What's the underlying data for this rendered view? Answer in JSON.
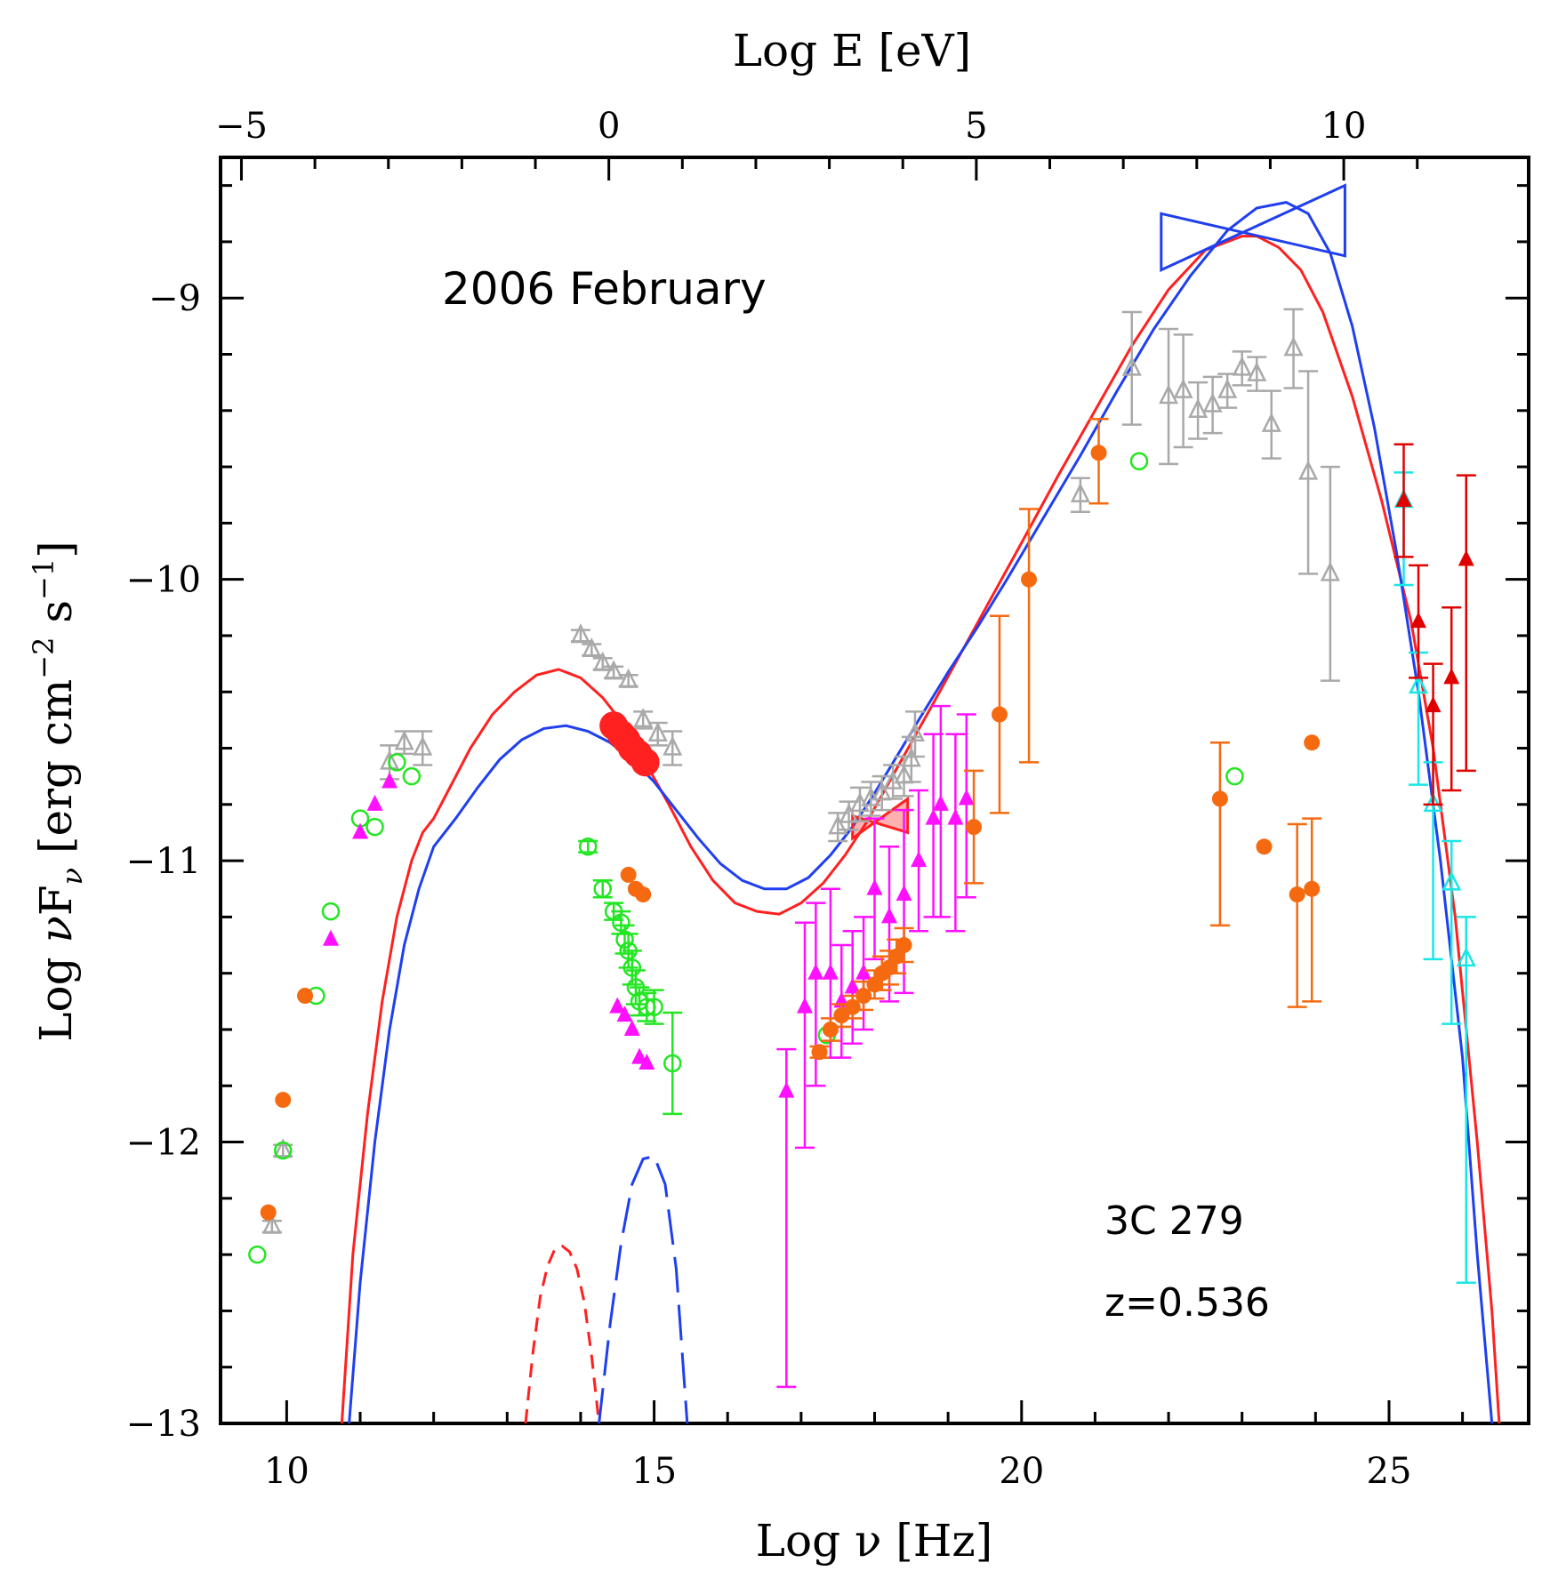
{
  "chart_data": {
    "type": "scatter",
    "title": "",
    "xlabel": "Log ν [Hz]",
    "ylabel": "Log νF_ν [erg cm^-2 s^-1]",
    "ylabel_parts": {
      "a": "Log ",
      "nu": "ν",
      "F": "F",
      "sub": "ν",
      "b": " [erg cm",
      "e1": "−2",
      "c": " s",
      "e2": "−1",
      "d": "]"
    },
    "x2label": "Log E [eV]",
    "xlim": [
      9.1,
      26.9
    ],
    "ylim": [
      -13,
      -8.5
    ],
    "x_ticks": [
      "10",
      "15",
      "20",
      "25"
    ],
    "y_ticks": [
      "−9",
      "−10",
      "−11",
      "−12",
      "−13"
    ],
    "x2_ticks": [
      "−5",
      "0",
      "5",
      "10"
    ],
    "annotations": {
      "epoch": "2006 February",
      "source": "3C 279",
      "redshift": "z=0.536"
    },
    "colors": {
      "red": "#ff2020",
      "blue": "#1f3ff0",
      "orange": "#f56a10",
      "magenta": "#ff10ff",
      "green": "#22e622",
      "gray": "#a9a9a9",
      "cyan": "#19e6e6",
      "darkred": "#e00000"
    },
    "models": [
      {
        "name": "red",
        "color": "#ff2020",
        "x": [
          10.75,
          10.9,
          11.1,
          11.3,
          11.5,
          11.7,
          11.85,
          12.0,
          12.2,
          12.5,
          12.8,
          13.1,
          13.4,
          13.7,
          14.0,
          14.3,
          14.6,
          14.9,
          15.2,
          15.5,
          15.8,
          16.1,
          16.4,
          16.7,
          17.0,
          17.3,
          17.6,
          17.9,
          18.2,
          18.5,
          18.8,
          19.2,
          19.6,
          20.0,
          20.5,
          21.0,
          21.5,
          22.0,
          22.5,
          23.0,
          23.2,
          23.5,
          23.8,
          24.1,
          24.5,
          24.9,
          25.3,
          25.6,
          25.9,
          26.2,
          26.4,
          26.5
        ],
        "y": [
          -13.0,
          -12.4,
          -11.9,
          -11.5,
          -11.2,
          -11.0,
          -10.9,
          -10.85,
          -10.75,
          -10.6,
          -10.48,
          -10.4,
          -10.34,
          -10.32,
          -10.35,
          -10.42,
          -10.52,
          -10.66,
          -10.8,
          -10.95,
          -11.07,
          -11.15,
          -11.18,
          -11.19,
          -11.15,
          -11.08,
          -10.98,
          -10.86,
          -10.72,
          -10.58,
          -10.44,
          -10.25,
          -10.06,
          -9.87,
          -9.63,
          -9.4,
          -9.17,
          -8.97,
          -8.83,
          -8.78,
          -8.78,
          -8.82,
          -8.9,
          -9.05,
          -9.35,
          -9.72,
          -10.15,
          -10.6,
          -11.2,
          -12.0,
          -12.6,
          -13.0
        ]
      },
      {
        "name": "blue",
        "color": "#1f3ff0",
        "x": [
          10.85,
          11.0,
          11.2,
          11.4,
          11.6,
          11.8,
          12.0,
          12.3,
          12.6,
          12.9,
          13.2,
          13.5,
          13.8,
          14.1,
          14.4,
          14.7,
          15.0,
          15.3,
          15.6,
          15.9,
          16.2,
          16.5,
          16.8,
          17.1,
          17.4,
          17.7,
          18.0,
          18.3,
          18.6,
          19.0,
          19.4,
          19.8,
          20.3,
          20.8,
          21.3,
          21.8,
          22.3,
          22.8,
          23.2,
          23.6,
          23.9,
          24.2,
          24.5,
          24.8,
          25.1,
          25.4,
          25.7,
          26.0,
          26.2,
          26.4
        ],
        "y": [
          -13.0,
          -12.5,
          -12.0,
          -11.6,
          -11.3,
          -11.1,
          -10.95,
          -10.85,
          -10.74,
          -10.64,
          -10.57,
          -10.53,
          -10.52,
          -10.54,
          -10.58,
          -10.64,
          -10.72,
          -10.82,
          -10.92,
          -11.01,
          -11.07,
          -11.1,
          -11.1,
          -11.06,
          -10.98,
          -10.88,
          -10.76,
          -10.63,
          -10.5,
          -10.33,
          -10.17,
          -10.0,
          -9.78,
          -9.56,
          -9.33,
          -9.11,
          -8.92,
          -8.76,
          -8.68,
          -8.66,
          -8.7,
          -8.84,
          -9.1,
          -9.46,
          -9.9,
          -10.4,
          -11.0,
          -11.7,
          -12.4,
          -13.0
        ]
      },
      {
        "name": "red-dashed",
        "color": "#ff2020",
        "dash": "16 10",
        "x": [
          13.25,
          13.35,
          13.45,
          13.55,
          13.65,
          13.75,
          13.85,
          13.95,
          14.05,
          14.15,
          14.25
        ],
        "y": [
          -13.0,
          -12.75,
          -12.55,
          -12.44,
          -12.38,
          -12.37,
          -12.39,
          -12.45,
          -12.57,
          -12.76,
          -13.0
        ]
      },
      {
        "name": "blue-dashed",
        "color": "#1f3ff0",
        "dash": "40 14",
        "x": [
          14.25,
          14.4,
          14.55,
          14.7,
          14.85,
          15.0,
          15.15,
          15.3,
          15.45
        ],
        "y": [
          -13.0,
          -12.65,
          -12.36,
          -12.15,
          -12.06,
          -12.05,
          -12.15,
          -12.45,
          -13.0
        ]
      }
    ],
    "bowties": [
      {
        "name": "fermi-bowtie",
        "color": "#1f3ff0",
        "fill": "none",
        "points": [
          [
            21.9,
            -8.7
          ],
          [
            24.4,
            -8.6
          ],
          [
            24.4,
            -8.85
          ],
          [
            21.9,
            -8.9
          ]
        ]
      },
      {
        "name": "xray-bowtie",
        "color": "#ff2020",
        "fill": "#ff2020",
        "points": [
          [
            17.7,
            -10.84
          ],
          [
            18.45,
            -10.78
          ],
          [
            18.45,
            -10.9
          ],
          [
            17.7,
            -10.92
          ]
        ]
      }
    ],
    "series": [
      {
        "name": "",
        "color": "#a9a9a9",
        "marker": "tri-open",
        "x": [
          9.8,
          9.95,
          11.4,
          11.6,
          11.85,
          14.0,
          14.15,
          14.3,
          14.45,
          14.65,
          14.85,
          15.05,
          15.25,
          17.5,
          17.65,
          17.8,
          17.95,
          18.1,
          18.25,
          18.4,
          18.5,
          18.55,
          20.8,
          21.5,
          22.0,
          22.2,
          22.4,
          22.6,
          22.8,
          23.0,
          23.2,
          23.4,
          23.7,
          23.9,
          24.2
        ],
        "y": [
          -12.3,
          -12.03,
          -10.65,
          -10.58,
          -10.6,
          -10.2,
          -10.25,
          -10.3,
          -10.33,
          -10.36,
          -10.5,
          -10.55,
          -10.6,
          -10.88,
          -10.84,
          -10.8,
          -10.78,
          -10.76,
          -10.72,
          -10.7,
          -10.64,
          -10.55,
          -9.7,
          -9.25,
          -9.35,
          -9.33,
          -9.4,
          -9.38,
          -9.33,
          -9.25,
          -9.27,
          -9.45,
          -9.18,
          -9.62,
          -9.98
        ],
        "errlow": [
          0.02,
          0.02,
          0.06,
          0.04,
          0.06,
          0.02,
          0.02,
          0.02,
          0.02,
          0.02,
          0.03,
          0.04,
          0.06,
          0.05,
          0.05,
          0.06,
          0.06,
          0.06,
          0.06,
          0.07,
          0.08,
          0.08,
          0.06,
          0.2,
          0.24,
          0.2,
          0.1,
          0.1,
          0.06,
          0.06,
          0.06,
          0.12,
          0.14,
          0.36,
          0.38
        ],
        "errhigh": [
          0.02,
          0.02,
          0.06,
          0.04,
          0.06,
          0.02,
          0.02,
          0.02,
          0.02,
          0.02,
          0.03,
          0.04,
          0.06,
          0.05,
          0.05,
          0.06,
          0.06,
          0.06,
          0.06,
          0.07,
          0.08,
          0.08,
          0.06,
          0.2,
          0.24,
          0.2,
          0.1,
          0.1,
          0.06,
          0.06,
          0.06,
          0.12,
          0.14,
          0.36,
          0.38
        ]
      },
      {
        "name": "",
        "color": "#22e622",
        "marker": "circle-open",
        "x": [
          9.6,
          9.95,
          10.4,
          10.6,
          11.0,
          11.2,
          11.5,
          11.7,
          14.1,
          14.3,
          14.45,
          14.55,
          14.6,
          14.65,
          14.7,
          14.75,
          14.8,
          14.9,
          15.0,
          15.25,
          17.35,
          22.9,
          21.6
        ],
        "y": [
          -12.4,
          -12.03,
          -11.48,
          -11.18,
          -10.85,
          -10.88,
          -10.65,
          -10.7,
          -10.95,
          -11.1,
          -11.18,
          -11.22,
          -11.28,
          -11.32,
          -11.38,
          -11.45,
          -11.5,
          -11.52,
          -11.52,
          -11.72,
          -11.62,
          -10.7,
          -9.58
        ],
        "errlow": [
          0,
          0,
          0,
          0,
          0,
          0,
          0,
          0,
          0.02,
          0.03,
          0.03,
          0.04,
          0.05,
          0.06,
          0.06,
          0.06,
          0.05,
          0.05,
          0.06,
          0.18,
          0,
          0,
          0
        ],
        "errhigh": [
          0,
          0,
          0,
          0,
          0,
          0,
          0,
          0,
          0.02,
          0.03,
          0.03,
          0.04,
          0.05,
          0.06,
          0.06,
          0.06,
          0.05,
          0.05,
          0.06,
          0.18,
          0,
          0,
          0
        ]
      },
      {
        "name": "",
        "color": "#ff10ff",
        "marker": "tri-filled",
        "x": [
          10.6,
          11.0,
          11.2,
          11.4,
          14.5,
          14.6,
          14.7,
          14.8,
          14.9,
          16.8,
          17.05,
          17.2,
          17.4,
          17.55,
          17.7,
          17.85,
          18.0,
          18.2,
          18.4,
          18.6,
          18.8,
          18.9,
          19.1,
          19.25
        ],
        "y": [
          -11.28,
          -10.9,
          -10.8,
          -10.72,
          -11.52,
          -11.55,
          -11.6,
          -11.7,
          -11.72,
          -11.82,
          -11.52,
          -11.4,
          -11.4,
          -11.5,
          -11.45,
          -11.4,
          -11.1,
          -11.2,
          -11.12,
          -11.0,
          -10.85,
          -10.8,
          -10.85,
          -10.78
        ],
        "errlow": [
          0,
          0,
          0,
          0,
          0,
          0,
          0,
          0,
          0,
          1.05,
          0.5,
          0.4,
          0.3,
          0.2,
          0.2,
          0.2,
          0.25,
          0.3,
          0.35,
          0.25,
          0.35,
          0.4,
          0.4,
          0.35
        ],
        "errhigh": [
          0,
          0,
          0,
          0,
          0,
          0,
          0,
          0,
          0,
          0.15,
          0.3,
          0.25,
          0.3,
          0.2,
          0.2,
          0.2,
          0.25,
          0.25,
          0.3,
          0.25,
          0.3,
          0.35,
          0.3,
          0.3
        ]
      },
      {
        "name": "",
        "color": "#f56a10",
        "marker": "circle-filled",
        "x": [
          9.75,
          9.95,
          10.25,
          14.65,
          14.75,
          14.85,
          17.25,
          17.4,
          17.55,
          17.7,
          17.85,
          18.0,
          18.1,
          18.2,
          18.3,
          18.4,
          19.35,
          19.7,
          20.1,
          21.05,
          22.7,
          23.3,
          23.75,
          23.95,
          23.95
        ],
        "y": [
          -12.25,
          -11.85,
          -11.48,
          -11.05,
          -11.1,
          -11.12,
          -11.68,
          -11.6,
          -11.55,
          -11.52,
          -11.48,
          -11.44,
          -11.4,
          -11.38,
          -11.34,
          -11.3,
          -10.88,
          -10.48,
          -10.0,
          -9.55,
          -10.78,
          -10.95,
          -11.12,
          -10.58,
          -11.1
        ],
        "errlow": [
          0,
          0,
          0,
          0,
          0,
          0,
          0.02,
          0.04,
          0.04,
          0.04,
          0.05,
          0.05,
          0.06,
          0.06,
          0.06,
          0.06,
          0.2,
          0.35,
          0.65,
          0.18,
          0.45,
          0,
          0.4,
          0,
          0.4
        ],
        "errhigh": [
          0,
          0,
          0,
          0,
          0,
          0,
          0.02,
          0.04,
          0.04,
          0.04,
          0.05,
          0.05,
          0.06,
          0.06,
          0.06,
          0.06,
          0.2,
          0.35,
          0.25,
          0.12,
          0.2,
          0,
          0.25,
          0,
          0.25
        ]
      },
      {
        "name": "",
        "color": "#ff2020",
        "marker": "circle-big",
        "x": [
          14.45,
          14.55,
          14.62,
          14.7,
          14.78,
          14.88
        ],
        "y": [
          -10.52,
          -10.55,
          -10.57,
          -10.6,
          -10.62,
          -10.65
        ],
        "errlow": [
          0,
          0,
          0,
          0,
          0,
          0
        ],
        "errhigh": [
          0,
          0,
          0,
          0,
          0,
          0
        ]
      },
      {
        "name": "",
        "color": "#19e6e6",
        "marker": "tri-open",
        "x": [
          25.2,
          25.4,
          25.6,
          25.85,
          26.05
        ],
        "y": [
          -9.72,
          -10.38,
          -10.8,
          -11.08,
          -11.35
        ],
        "errlow": [
          0.3,
          0.35,
          0.55,
          0.5,
          1.15
        ],
        "errhigh": [
          0.1,
          0.12,
          0.15,
          0.15,
          0.15
        ]
      },
      {
        "name": "",
        "color": "#e00000",
        "marker": "tri-filled",
        "x": [
          25.2,
          25.4,
          25.6,
          25.85,
          26.05
        ],
        "y": [
          -9.72,
          -10.15,
          -10.45,
          -10.35,
          -9.93
        ],
        "errlow": [
          0.2,
          0.2,
          0.35,
          0.4,
          0.75
        ],
        "errhigh": [
          0.2,
          0.2,
          0.15,
          0.25,
          0.3
        ]
      }
    ]
  }
}
